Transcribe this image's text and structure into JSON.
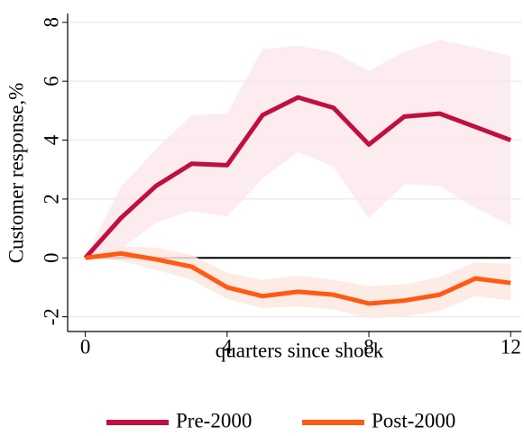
{
  "chart_data": {
    "type": "line",
    "x_label": "quarters since shock",
    "y_label": "Customer response,%",
    "x": [
      0,
      1,
      2,
      3,
      4,
      5,
      6,
      7,
      8,
      9,
      10,
      11,
      12
    ],
    "series": [
      {
        "name": "Pre-2000",
        "color": "#c0103f",
        "band_color": "#fbe8ec",
        "values": [
          0,
          1.35,
          2.45,
          3.2,
          3.15,
          4.85,
          5.45,
          5.1,
          3.85,
          4.8,
          4.9,
          4.45,
          4.0
        ],
        "upper": [
          0,
          2.4,
          3.7,
          4.85,
          4.9,
          7.1,
          7.2,
          7.0,
          6.35,
          7.0,
          7.4,
          7.15,
          6.85
        ],
        "lower": [
          0,
          0.3,
          1.2,
          1.6,
          1.4,
          2.7,
          3.6,
          3.1,
          1.35,
          2.5,
          2.45,
          1.7,
          1.1
        ]
      },
      {
        "name": "Post-2000",
        "color": "#ff5a14",
        "band_color": "#fde8e0",
        "values": [
          0,
          0.15,
          -0.05,
          -0.3,
          -1.0,
          -1.3,
          -1.15,
          -1.25,
          -1.55,
          -1.45,
          -1.25,
          -0.7,
          -0.85
        ],
        "upper": [
          0,
          0.4,
          0.35,
          0.1,
          -0.5,
          -0.75,
          -0.6,
          -0.75,
          -0.95,
          -0.9,
          -0.65,
          -0.15,
          -0.2
        ],
        "lower": [
          0,
          -0.1,
          -0.4,
          -0.75,
          -1.4,
          -1.7,
          -1.65,
          -1.75,
          -2.05,
          -2.0,
          -1.8,
          -1.3,
          -1.45
        ]
      }
    ],
    "hline": 0,
    "xlim": [
      -0.5,
      12.3
    ],
    "ylim": [
      -2.5,
      8.3
    ],
    "xticks": [
      0,
      4,
      8,
      12
    ],
    "yticks": [
      -2,
      0,
      2,
      4,
      6,
      8
    ],
    "grid": true,
    "legend": "bottom"
  }
}
